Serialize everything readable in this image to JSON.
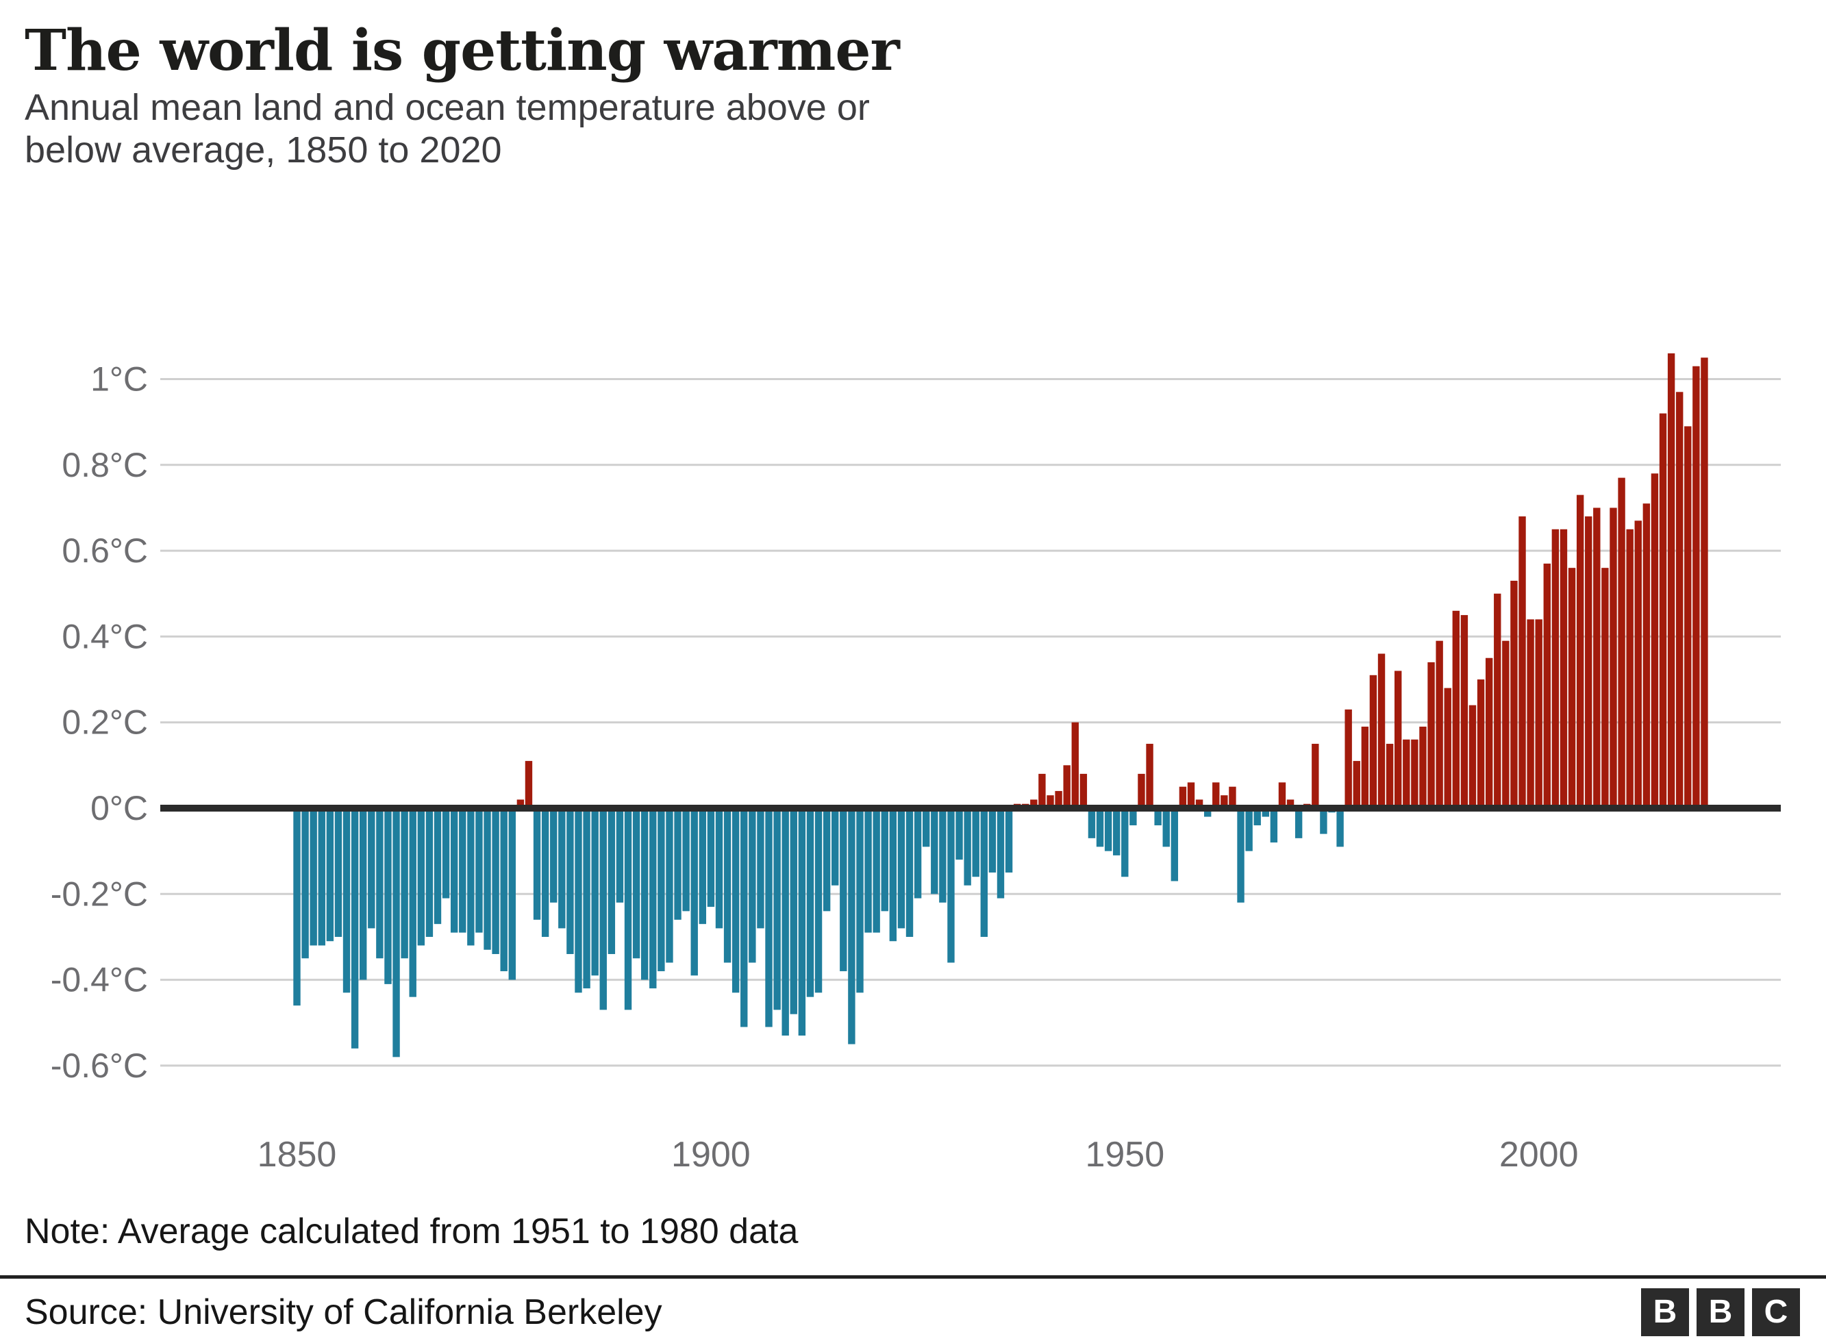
{
  "chart_data": {
    "type": "bar",
    "title": "The world is getting warmer",
    "subtitle": "Annual mean land and ocean temperature above or\nbelow average, 1850 to 2020",
    "unit": "°C",
    "xlabel": "",
    "ylabel": "",
    "x_range": [
      1850,
      2020
    ],
    "ylim": [
      -0.7,
      1.1
    ],
    "grid": "horizontal",
    "legend": "none",
    "years": [
      1850,
      1851,
      1852,
      1853,
      1854,
      1855,
      1856,
      1857,
      1858,
      1859,
      1860,
      1861,
      1862,
      1863,
      1864,
      1865,
      1866,
      1867,
      1868,
      1869,
      1870,
      1871,
      1872,
      1873,
      1874,
      1875,
      1876,
      1877,
      1878,
      1879,
      1880,
      1881,
      1882,
      1883,
      1884,
      1885,
      1886,
      1887,
      1888,
      1889,
      1890,
      1891,
      1892,
      1893,
      1894,
      1895,
      1896,
      1897,
      1898,
      1899,
      1900,
      1901,
      1902,
      1903,
      1904,
      1905,
      1906,
      1907,
      1908,
      1909,
      1910,
      1911,
      1912,
      1913,
      1914,
      1915,
      1916,
      1917,
      1918,
      1919,
      1920,
      1921,
      1922,
      1923,
      1924,
      1925,
      1926,
      1927,
      1928,
      1929,
      1930,
      1931,
      1932,
      1933,
      1934,
      1935,
      1936,
      1937,
      1938,
      1939,
      1940,
      1941,
      1942,
      1943,
      1944,
      1945,
      1946,
      1947,
      1948,
      1949,
      1950,
      1951,
      1952,
      1953,
      1954,
      1955,
      1956,
      1957,
      1958,
      1959,
      1960,
      1961,
      1962,
      1963,
      1964,
      1965,
      1966,
      1967,
      1968,
      1969,
      1970,
      1971,
      1972,
      1973,
      1974,
      1975,
      1976,
      1977,
      1978,
      1979,
      1980,
      1981,
      1982,
      1983,
      1984,
      1985,
      1986,
      1987,
      1988,
      1989,
      1990,
      1991,
      1992,
      1993,
      1994,
      1995,
      1996,
      1997,
      1998,
      1999,
      2000,
      2001,
      2002,
      2003,
      2004,
      2005,
      2006,
      2007,
      2008,
      2009,
      2010,
      2011,
      2012,
      2013,
      2014,
      2015,
      2016,
      2017,
      2018,
      2019,
      2020
    ],
    "values": [
      -0.46,
      -0.35,
      -0.32,
      -0.32,
      -0.31,
      -0.3,
      -0.43,
      -0.56,
      -0.4,
      -0.28,
      -0.35,
      -0.41,
      -0.58,
      -0.35,
      -0.44,
      -0.32,
      -0.3,
      -0.27,
      -0.21,
      -0.29,
      -0.29,
      -0.32,
      -0.29,
      -0.33,
      -0.34,
      -0.38,
      -0.4,
      0.02,
      0.11,
      -0.26,
      -0.3,
      -0.22,
      -0.28,
      -0.34,
      -0.43,
      -0.42,
      -0.39,
      -0.47,
      -0.34,
      -0.22,
      -0.47,
      -0.35,
      -0.4,
      -0.42,
      -0.38,
      -0.36,
      -0.26,
      -0.24,
      -0.39,
      -0.27,
      -0.23,
      -0.28,
      -0.36,
      -0.43,
      -0.51,
      -0.36,
      -0.28,
      -0.51,
      -0.47,
      -0.53,
      -0.48,
      -0.53,
      -0.44,
      -0.43,
      -0.24,
      -0.18,
      -0.38,
      -0.55,
      -0.43,
      -0.29,
      -0.29,
      -0.24,
      -0.31,
      -0.28,
      -0.3,
      -0.21,
      -0.09,
      -0.2,
      -0.22,
      -0.36,
      -0.12,
      -0.18,
      -0.16,
      -0.3,
      -0.15,
      -0.21,
      -0.15,
      0.01,
      0.01,
      0.02,
      0.08,
      0.03,
      0.04,
      0.1,
      0.2,
      0.08,
      -0.07,
      -0.09,
      -0.1,
      -0.11,
      -0.16,
      -0.04,
      0.08,
      0.15,
      -0.04,
      -0.09,
      -0.17,
      0.05,
      0.06,
      0.02,
      -0.02,
      0.06,
      0.03,
      0.05,
      -0.22,
      -0.1,
      -0.04,
      -0.02,
      -0.08,
      0.06,
      0.02,
      -0.07,
      0.01,
      0.15,
      -0.06,
      -0.01,
      -0.09,
      0.23,
      0.11,
      0.19,
      0.31,
      0.36,
      0.15,
      0.32,
      0.16,
      0.16,
      0.19,
      0.34,
      0.39,
      0.28,
      0.46,
      0.45,
      0.24,
      0.3,
      0.35,
      0.5,
      0.39,
      0.53,
      0.68,
      0.44,
      0.44,
      0.57,
      0.65,
      0.65,
      0.56,
      0.73,
      0.68,
      0.7,
      0.56,
      0.7,
      0.77,
      0.65,
      0.67,
      0.71,
      0.78,
      0.92,
      1.06,
      0.97,
      0.89,
      1.03,
      1.05
    ],
    "y_ticks": [
      {
        "v": 1.0,
        "label": "1°C"
      },
      {
        "v": 0.8,
        "label": "0.8°C"
      },
      {
        "v": 0.6,
        "label": "0.6°C"
      },
      {
        "v": 0.4,
        "label": "0.4°C"
      },
      {
        "v": 0.2,
        "label": "0.2°C"
      },
      {
        "v": 0.0,
        "label": "0°C"
      },
      {
        "v": -0.2,
        "label": "-0.2°C"
      },
      {
        "v": -0.4,
        "label": "-0.4°C"
      },
      {
        "v": -0.6,
        "label": "-0.6°C"
      }
    ],
    "x_ticks": [
      {
        "v": 1850,
        "label": "1850"
      },
      {
        "v": 1900,
        "label": "1900"
      },
      {
        "v": 1950,
        "label": "1950"
      },
      {
        "v": 2000,
        "label": "2000"
      }
    ],
    "colors": {
      "positive": "#a21b0c",
      "negative": "#1f7e9d",
      "zero_line": "#2b2b2b",
      "gridline": "#cfcfcf",
      "tick_text": "#6d6d70"
    }
  },
  "footer": {
    "note": "Note: Average calculated from 1951 to 1980 data",
    "source": "Source: University of California Berkeley",
    "logo_letters": [
      "B",
      "B",
      "C"
    ]
  }
}
